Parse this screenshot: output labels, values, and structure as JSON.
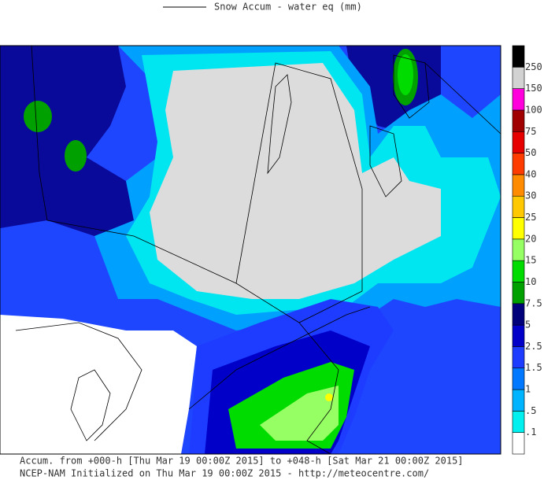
{
  "legend": {
    "label": "Snow Accum - water eq (mm)"
  },
  "colorbar": {
    "labels": [
      ".1",
      ".5",
      "1",
      "1.5",
      "2.5",
      "5",
      "7.5",
      "10",
      "15",
      "20",
      "25",
      "30",
      "40",
      "50",
      "75",
      "100",
      "150",
      "250"
    ],
    "colors": [
      "#ffffff",
      "#00f0f0",
      "#00b4ff",
      "#0078ff",
      "#1e3cff",
      "#0000c8",
      "#00007a",
      "#00a000",
      "#00dc00",
      "#96ff64",
      "#ffff00",
      "#ffc800",
      "#ff8c00",
      "#ff3c00",
      "#e60000",
      "#a00000",
      "#ff00dc",
      "#d2d2d2",
      "#000000"
    ]
  },
  "footer": {
    "line1": "Accum. from +000-h [Thu Mar 19 00:00Z 2015] to +048-h [Sat Mar 21 00:00Z 2015]",
    "line2": "NCEP-NAM Initialized on Thu Mar 19 00:00Z 2015 - http://meteocentre.com/"
  }
}
